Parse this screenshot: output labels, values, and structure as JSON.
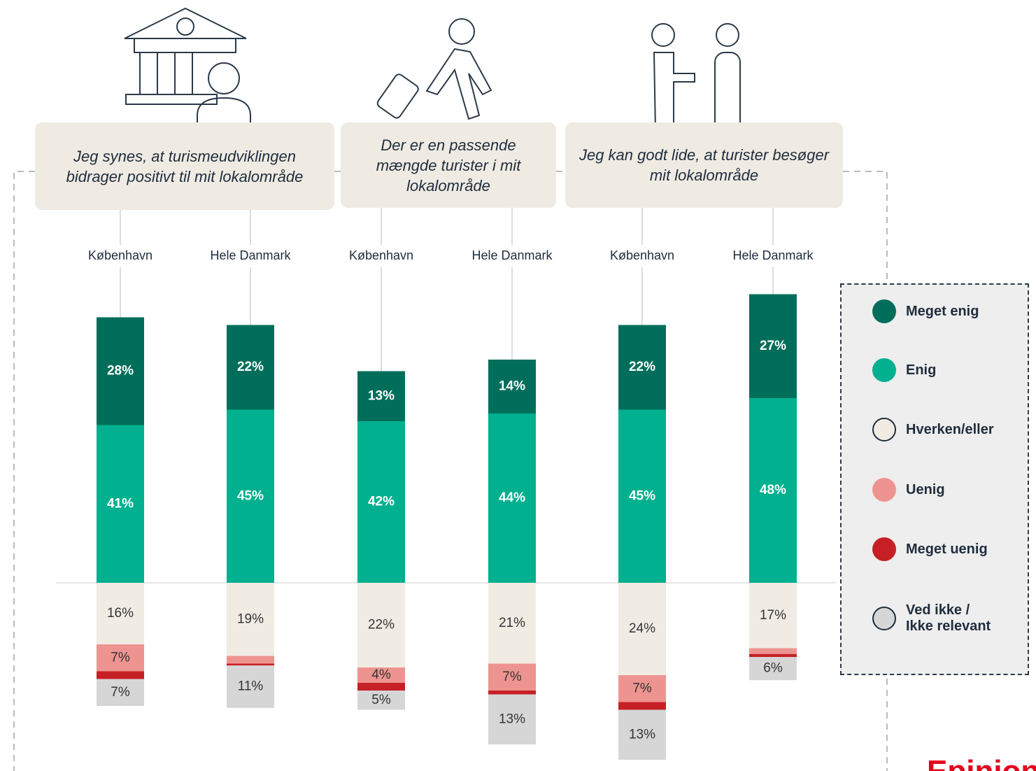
{
  "chart_data": {
    "type": "bar",
    "questions": [
      "Jeg synes, at turismeudviklingen bidrager positivt til mit lokalområde",
      "Der er en passende mængde turister i mit lokalområde",
      "Jeg kan godt lide, at turister besøger mit lokalområde"
    ],
    "categories": [
      "København",
      "Hele Danmark",
      "København",
      "Hele Danmark",
      "København",
      "Hele Danmark"
    ],
    "series": [
      {
        "name": "Meget enig",
        "color": "#006e5a",
        "values": [
          28,
          22,
          13,
          14,
          22,
          27
        ],
        "value_labels": [
          "28%",
          "22%",
          "13%",
          "14%",
          "22%",
          "27%"
        ]
      },
      {
        "name": "Enig",
        "color": "#00b08f",
        "values": [
          41,
          45,
          42,
          44,
          45,
          48
        ],
        "value_labels": [
          "41%",
          "45%",
          "42%",
          "44%",
          "45%",
          "48%"
        ]
      },
      {
        "name": "Hverken/eller",
        "color": "#f0ece4",
        "values": [
          16,
          19,
          22,
          21,
          24,
          17
        ],
        "value_labels": [
          "16%",
          "19%",
          "22%",
          "21%",
          "24%",
          "17%"
        ]
      },
      {
        "name": "Uenig",
        "color": "#ee9490",
        "values": [
          7,
          2,
          4,
          7,
          7,
          1.5
        ],
        "value_labels": [
          "7%",
          null,
          "4%",
          "7%",
          "7%",
          null
        ]
      },
      {
        "name": "Meget uenig",
        "color": "#c62026",
        "values": [
          2,
          0.5,
          2,
          1,
          2,
          0.8
        ],
        "value_labels": [
          null,
          null,
          null,
          null,
          null,
          null
        ]
      },
      {
        "name": "Ved ikke / Ikke relevant",
        "color": "#d6d6d6",
        "values": [
          7,
          11,
          5,
          13,
          13,
          6
        ],
        "value_labels": [
          "7%",
          "11%",
          "5%",
          "13%",
          "13%",
          "6%"
        ]
      }
    ],
    "legend": "right",
    "brand": "Epinion"
  }
}
